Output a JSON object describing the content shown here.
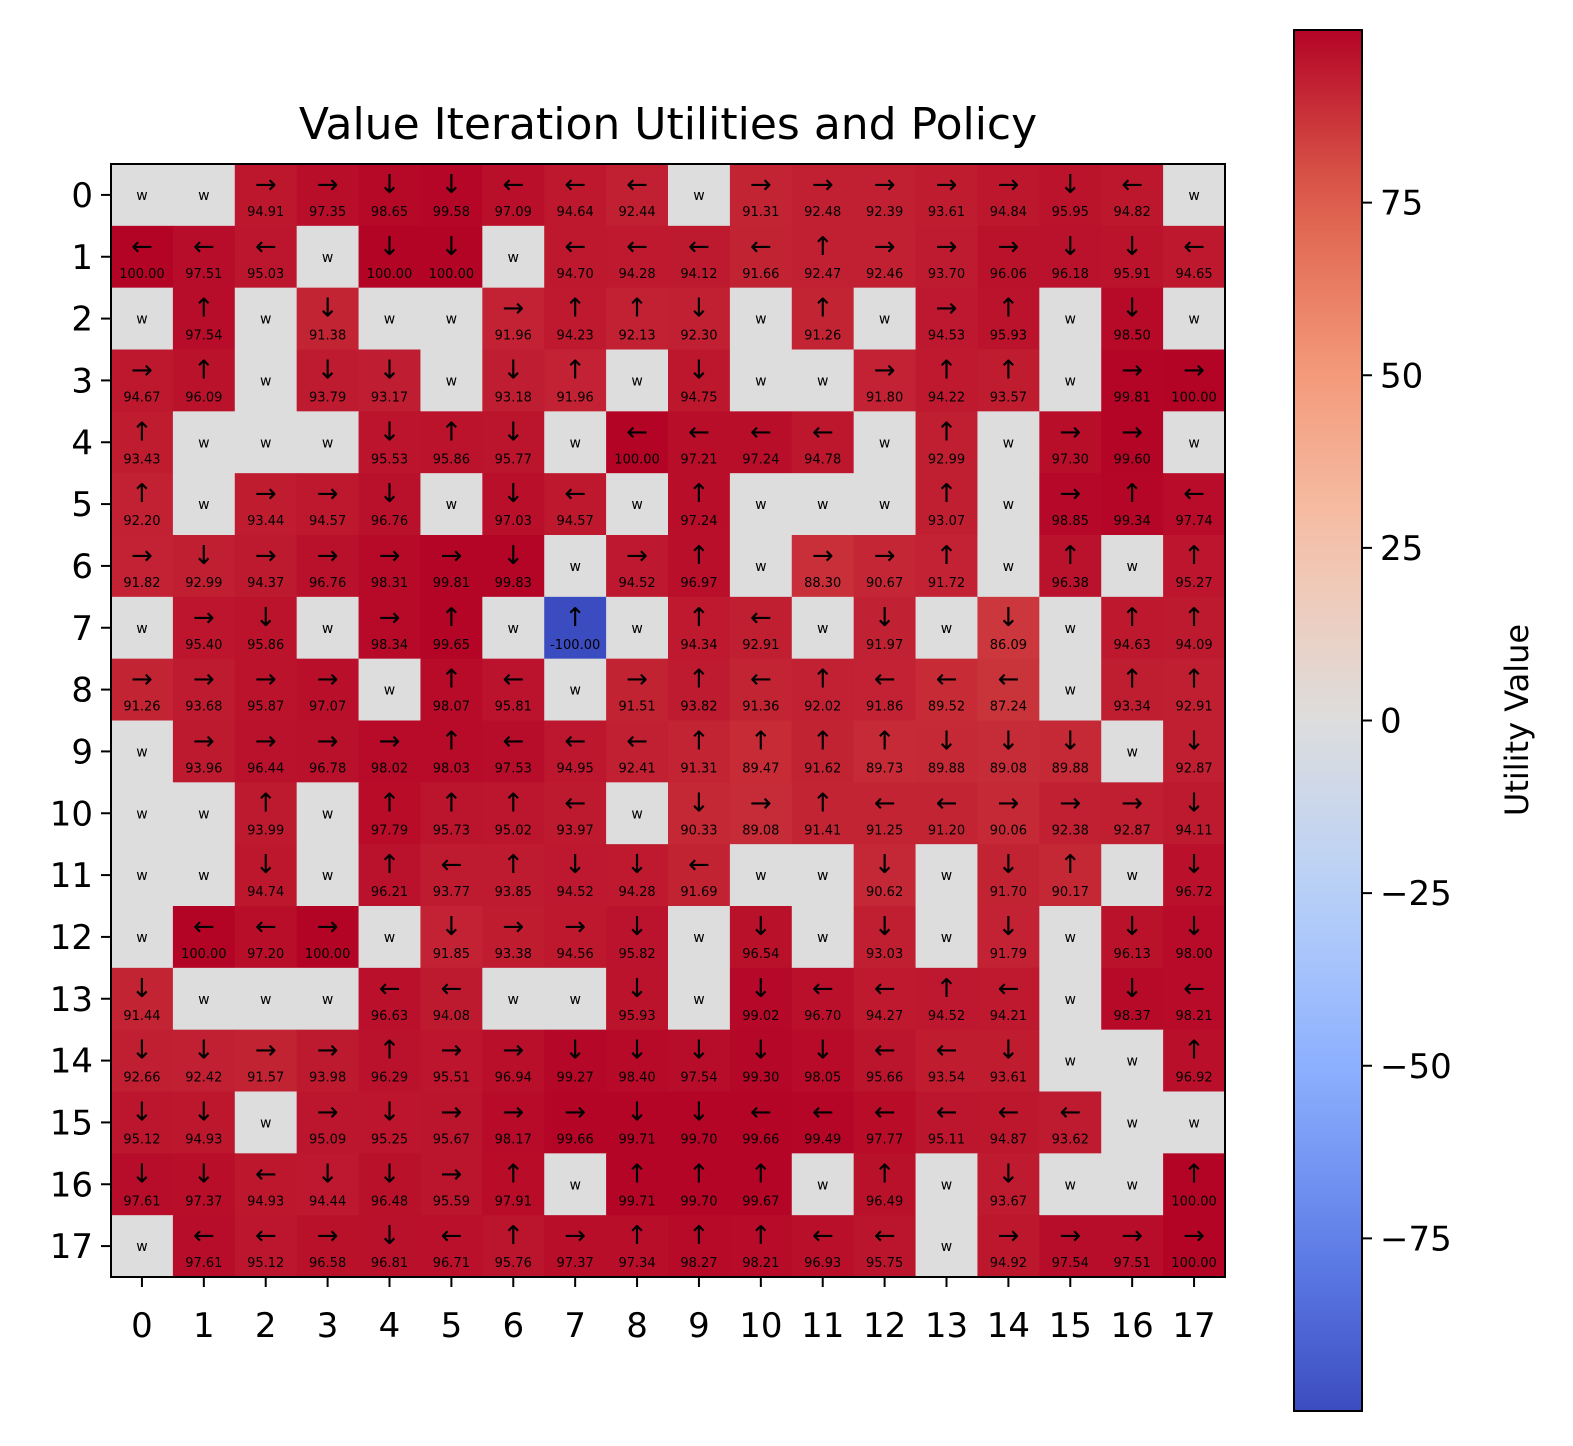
{
  "chart_data": {
    "type": "heatmap",
    "title": "Value Iteration Utilities and Policy",
    "xlabel": "",
    "ylabel": "",
    "colorbar_label": "Utility Value",
    "colormap": "coolwarm",
    "vmin": -100,
    "vmax": 100,
    "colorbar_ticks": [
      75,
      50,
      25,
      0,
      -25,
      -50,
      -75
    ],
    "colorbar_tick_labels": [
      "75",
      "50",
      "25",
      "0",
      "−25",
      "−50",
      "−75"
    ],
    "x_ticks": [
      "0",
      "1",
      "2",
      "3",
      "4",
      "5",
      "6",
      "7",
      "8",
      "9",
      "10",
      "11",
      "12",
      "13",
      "14",
      "15",
      "16",
      "17"
    ],
    "y_ticks": [
      "0",
      "1",
      "2",
      "3",
      "4",
      "5",
      "6",
      "7",
      "8",
      "9",
      "10",
      "11",
      "12",
      "13",
      "14",
      "15",
      "16",
      "17"
    ],
    "wall_label": "w",
    "wall_color": "#dddddd",
    "arrows": {
      "U": "↑",
      "D": "↓",
      "L": "←",
      "R": "→"
    },
    "grid": [
      [
        "w",
        "w",
        "R 94.91",
        "R 97.35",
        "D 98.65",
        "D 99.58",
        "L 97.09",
        "L 94.64",
        "L 92.44",
        "w",
        "R 91.31",
        "R 92.48",
        "R 92.39",
        "R 93.61",
        "R 94.84",
        "D 95.95",
        "L 94.82",
        "w"
      ],
      [
        "L 100.00",
        "L 97.51",
        "L 95.03",
        "w",
        "D 100.00",
        "D 100.00",
        "w",
        "L 94.70",
        "L 94.28",
        "L 94.12",
        "L 91.66",
        "U 92.47",
        "R 92.46",
        "R 93.70",
        "R 96.06",
        "D 96.18",
        "D 95.91",
        "L 94.65"
      ],
      [
        "w",
        "U 97.54",
        "w",
        "D 91.38",
        "w",
        "w",
        "R 91.96",
        "U 94.23",
        "U 92.13",
        "D 92.30",
        "w",
        "U 91.26",
        "w",
        "R 94.53",
        "U 95.93",
        "w",
        "D 98.50",
        "w"
      ],
      [
        "R 94.67",
        "U 96.09",
        "w",
        "D 93.79",
        "D 93.17",
        "w",
        "D 93.18",
        "U 91.96",
        "w",
        "D 94.75",
        "w",
        "w",
        "R 91.80",
        "U 94.22",
        "U 93.57",
        "w",
        "R 99.81",
        "R 100.00"
      ],
      [
        "U 93.43",
        "w",
        "w",
        "w",
        "D 95.53",
        "U 95.86",
        "D 95.77",
        "w",
        "L 100.00",
        "L 97.21",
        "L 97.24",
        "L 94.78",
        "w",
        "U 92.99",
        "w",
        "R 97.30",
        "R 99.60",
        "w"
      ],
      [
        "U 92.20",
        "w",
        "R 93.44",
        "R 94.57",
        "D 96.76",
        "w",
        "D 97.03",
        "L 94.57",
        "w",
        "U 97.24",
        "w",
        "w",
        "w",
        "U 93.07",
        "w",
        "R 98.85",
        "U 99.34",
        "L 97.74"
      ],
      [
        "R 91.82",
        "D 92.99",
        "R 94.37",
        "R 96.76",
        "R 98.31",
        "R 99.81",
        "D 99.83",
        "w",
        "R 94.52",
        "U 96.97",
        "w",
        "R 88.30",
        "R 90.67",
        "U 91.72",
        "w",
        "U 96.38",
        "w",
        "U 95.27"
      ],
      [
        "w",
        "R 95.40",
        "D 95.86",
        "w",
        "R 98.34",
        "U 99.65",
        "w",
        "U -100.00",
        "w",
        "U 94.34",
        "L 92.91",
        "w",
        "D 91.97",
        "w",
        "D 86.09",
        "w",
        "U 94.63",
        "U 94.09"
      ],
      [
        "R 91.26",
        "R 93.68",
        "R 95.87",
        "R 97.07",
        "w",
        "U 98.07",
        "L 95.81",
        "w",
        "R 91.51",
        "U 93.82",
        "L 91.36",
        "U 92.02",
        "L 91.86",
        "L 89.52",
        "L 87.24",
        "w",
        "U 93.34",
        "U 92.91"
      ],
      [
        "w",
        "R 93.96",
        "R 96.44",
        "R 96.78",
        "R 98.02",
        "U 98.03",
        "L 97.53",
        "L 94.95",
        "L 92.41",
        "U 91.31",
        "U 89.47",
        "U 91.62",
        "U 89.73",
        "D 89.88",
        "D 89.08",
        "D 89.88",
        "w",
        "D 92.87"
      ],
      [
        "w",
        "w",
        "U 93.99",
        "w",
        "U 97.79",
        "U 95.73",
        "U 95.02",
        "L 93.97",
        "w",
        "D 90.33",
        "R 89.08",
        "U 91.41",
        "L 91.25",
        "L 91.20",
        "R 90.06",
        "R 92.38",
        "R 92.87",
        "D 94.11"
      ],
      [
        "w",
        "w",
        "D 94.74",
        "w",
        "U 96.21",
        "L 93.77",
        "U 93.85",
        "D 94.52",
        "D 94.28",
        "L 91.69",
        "w",
        "w",
        "D 90.62",
        "w",
        "D 91.70",
        "U 90.17",
        "w",
        "D 96.72"
      ],
      [
        "w",
        "L 100.00",
        "L 97.20",
        "R 100.00",
        "w",
        "D 91.85",
        "R 93.38",
        "R 94.56",
        "D 95.82",
        "w",
        "D 96.54",
        "w",
        "D 93.03",
        "w",
        "D 91.79",
        "w",
        "D 96.13",
        "D 98.00"
      ],
      [
        "D 91.44",
        "w",
        "w",
        "w",
        "L 96.63",
        "L 94.08",
        "w",
        "w",
        "D 95.93",
        "w",
        "D 99.02",
        "L 96.70",
        "L 94.27",
        "U 94.52",
        "L 94.21",
        "w",
        "D 98.37",
        "L 98.21"
      ],
      [
        "D 92.66",
        "D 92.42",
        "R 91.57",
        "R 93.98",
        "U 96.29",
        "R 95.51",
        "R 96.94",
        "D 99.27",
        "D 98.40",
        "D 97.54",
        "D 99.30",
        "D 98.05",
        "L 95.66",
        "L 93.54",
        "D 93.61",
        "w",
        "w",
        "U 96.92"
      ],
      [
        "D 95.12",
        "D 94.93",
        "w",
        "R 95.09",
        "D 95.25",
        "R 95.67",
        "R 98.17",
        "R 99.66",
        "D 99.71",
        "D 99.70",
        "L 99.66",
        "L 99.49",
        "L 97.77",
        "L 95.11",
        "L 94.87",
        "L 93.62",
        "w",
        "w"
      ],
      [
        "D 97.61",
        "D 97.37",
        "L 94.93",
        "D 94.44",
        "D 96.48",
        "R 95.59",
        "U 97.91",
        "w",
        "U 99.71",
        "U 99.70",
        "U 99.67",
        "w",
        "U 96.49",
        "w",
        "D 93.67",
        "w",
        "w",
        "U 100.00"
      ],
      [
        "w",
        "L 97.61",
        "L 95.12",
        "R 96.58",
        "D 96.81",
        "L 96.71",
        "U 95.76",
        "R 97.37",
        "U 97.34",
        "U 98.27",
        "U 98.21",
        "L 96.93",
        "L 95.75",
        "w",
        "R 94.92",
        "R 97.54",
        "R 97.51",
        "R 100.00"
      ]
    ]
  }
}
